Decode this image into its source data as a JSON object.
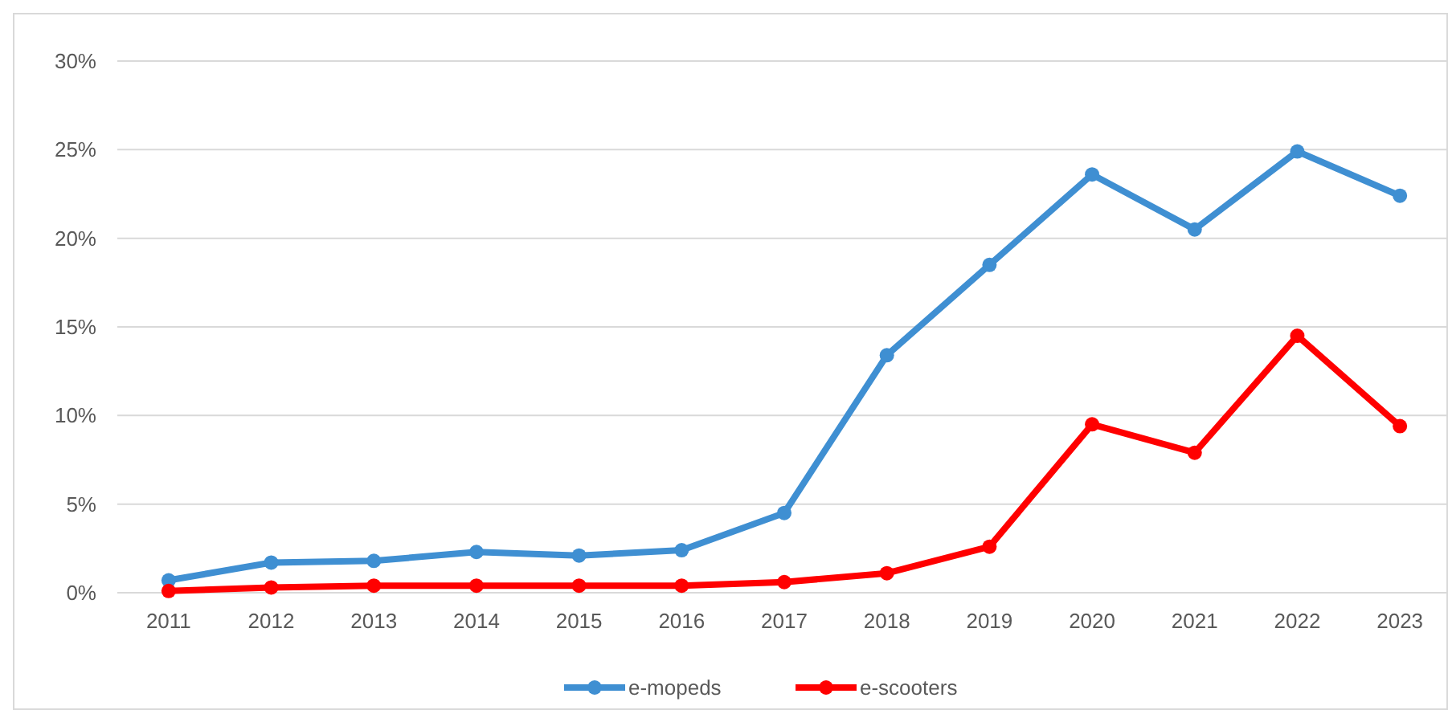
{
  "chart_data": {
    "type": "line",
    "categories": [
      "2011",
      "2012",
      "2013",
      "2014",
      "2015",
      "2016",
      "2017",
      "2018",
      "2019",
      "2020",
      "2021",
      "2022",
      "2023"
    ],
    "series": [
      {
        "name": "e-mopeds",
        "color": "#3f8fd2",
        "values": [
          0.7,
          1.7,
          1.8,
          2.3,
          2.1,
          2.4,
          4.5,
          13.4,
          18.5,
          23.6,
          20.5,
          24.9,
          22.4
        ]
      },
      {
        "name": "e-scooters",
        "color": "#ff0000",
        "values": [
          0.1,
          0.3,
          0.4,
          0.4,
          0.4,
          0.4,
          0.6,
          1.1,
          2.6,
          9.5,
          7.9,
          14.5,
          9.4
        ]
      }
    ],
    "ylim": [
      0,
      30
    ],
    "yticks": [
      {
        "value": 0,
        "label": "0%"
      },
      {
        "value": 5,
        "label": "5%"
      },
      {
        "value": 10,
        "label": "10%"
      },
      {
        "value": 15,
        "label": "15%"
      },
      {
        "value": 20,
        "label": "20%"
      },
      {
        "value": 25,
        "label": "25%"
      },
      {
        "value": 30,
        "label": "30%"
      }
    ],
    "grid": "y",
    "legend": "bottom",
    "marker": "circle",
    "line_style": "solid"
  }
}
